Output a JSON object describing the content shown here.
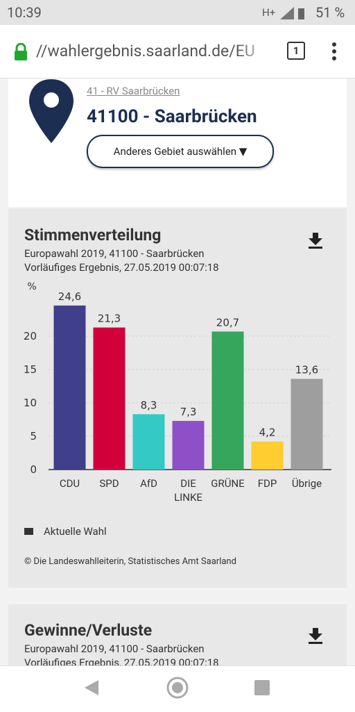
{
  "status_bar": {
    "time": "10:39",
    "network": "H+",
    "battery": "51 %"
  },
  "browser": {
    "url": "//wahlergebnis.saarland.de/EU",
    "tabs": "1"
  },
  "header": {
    "breadcrumb": "41 - RV Saarbrücken",
    "title": "41100 - Saarbrücken",
    "button": "Anderes Gebiet auswählen ▼"
  },
  "chart_data": {
    "type": "bar",
    "title": "Stimmenverteilung",
    "subtitle": [
      "Europawahl 2019, 41100 - Saarbrücken",
      "Vorläufiges Ergebnis, 27.05.2019 00:07:18"
    ],
    "y_label": "%",
    "categories": [
      "CDU",
      "SPD",
      "AfD",
      "DIE LINKE",
      "GRÜNE",
      "FDP",
      "Übrige"
    ],
    "values": [
      24.6,
      21.3,
      8.3,
      7.3,
      20.7,
      4.2,
      13.6
    ],
    "value_labels": [
      "24,6",
      "21,3",
      "8,3",
      "7,3",
      "20,7",
      "4,2",
      "13,6"
    ],
    "colors": [
      "#3f3f8b",
      "#d1003a",
      "#35c9c6",
      "#8f4fc6",
      "#35a65c",
      "#ffcd2f",
      "#9e9e9e"
    ],
    "ylim": [
      0,
      25
    ],
    "yticks": [
      0,
      5,
      10,
      15,
      20
    ],
    "grid": true,
    "legend": "Aktuelle Wahl",
    "source": "© Die Landeswahlleiterin, Statistisches Amt Saarland"
  },
  "next_card": {
    "title": "Gewinne/Verluste",
    "subtitle": [
      "Europawahl 2019, 41100 - Saarbrücken",
      "Vorläufiges Ergebnis, 27.05.2019 00:07:18"
    ]
  }
}
